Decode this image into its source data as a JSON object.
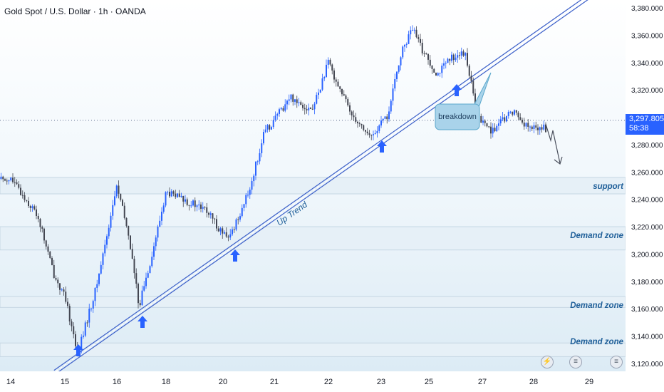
{
  "header": {
    "title": "Gold Spot / U.S. Dollar · 1h · OANDA"
  },
  "price_tag": {
    "price": "3,297.805",
    "countdown": "58:38"
  },
  "colors": {
    "up_candle": "#2962ff",
    "down_candle": "#434651",
    "trendline": "#3b5fc9",
    "arrow": "#2962ff",
    "zone_fill": "#e6f0f7",
    "callout_fill": "#a9d3ea",
    "callout_border": "#5aa7cc",
    "label_text": "#1f5f99"
  },
  "icons": [
    "lightning-icon",
    "us-flag-icon",
    "us-flag-icon"
  ],
  "chart_data": {
    "type": "candlestick",
    "title": "Gold Spot / U.S. Dollar · 1h · OANDA",
    "xlabel": "",
    "ylabel": "",
    "x_ticks": [
      "14",
      "15",
      "16",
      "18",
      "20",
      "21",
      "22",
      "23",
      "25",
      "27",
      "28",
      "29"
    ],
    "y_ticks": [
      "3,120.000",
      "3,140.000",
      "3,160.000",
      "3,180.000",
      "3,200.000",
      "3,220.000",
      "3,240.000",
      "3,260.000",
      "3,280.000",
      "3,300.000",
      "3,320.000",
      "3,340.000",
      "3,360.000",
      "3,380.000"
    ],
    "ylim": [
      3115,
      3388
    ],
    "grid": false,
    "current_price": 3297.805,
    "trend_series": [
      {
        "date": "14",
        "price": 3255
      },
      {
        "date": "14.5",
        "price": 3228
      },
      {
        "date": "14.8",
        "price": 3185
      },
      {
        "date": "15",
        "price": 3168
      },
      {
        "date": "15.25",
        "price": 3128
      },
      {
        "date": "15.6",
        "price": 3175
      },
      {
        "date": "16",
        "price": 3250
      },
      {
        "date": "16.5",
        "price": 3212
      },
      {
        "date": "16.9",
        "price": 3162
      },
      {
        "date": "17.5",
        "price": 3205
      },
      {
        "date": "18",
        "price": 3245
      },
      {
        "date": "18.6",
        "price": 3240
      },
      {
        "date": "19.4",
        "price": 3232
      },
      {
        "date": "20.1",
        "price": 3210
      },
      {
        "date": "20.5",
        "price": 3245
      },
      {
        "date": "20.8",
        "price": 3288
      },
      {
        "date": "21.3",
        "price": 3315
      },
      {
        "date": "21.7",
        "price": 3305
      },
      {
        "date": "22",
        "price": 3340
      },
      {
        "date": "22.4",
        "price": 3305
      },
      {
        "date": "22.8",
        "price": 3285
      },
      {
        "date": "23.3",
        "price": 3302
      },
      {
        "date": "23.8",
        "price": 3345
      },
      {
        "date": "24.3",
        "price": 3365
      },
      {
        "date": "24.7",
        "price": 3350
      },
      {
        "date": "25.3",
        "price": 3332
      },
      {
        "date": "26",
        "price": 3346
      },
      {
        "date": "26.4",
        "price": 3345
      },
      {
        "date": "26.8",
        "price": 3300
      },
      {
        "date": "27.2",
        "price": 3290
      },
      {
        "date": "27.6",
        "price": 3305
      },
      {
        "date": "27.9",
        "price": 3292
      }
    ],
    "zones": [
      {
        "label": "support",
        "low": 3244,
        "high": 3256
      },
      {
        "label": "Demand zone",
        "low": 3203,
        "high": 3220
      },
      {
        "label": "Demand zone",
        "low": 3161,
        "high": 3169
      },
      {
        "label": "Demand zone",
        "low": 3125,
        "high": 3135
      }
    ],
    "trendline": {
      "label": "Up Trend",
      "from": {
        "date": "14.8",
        "price": 3115
      },
      "to": {
        "date": "29",
        "price": 3390
      }
    },
    "annotations": [
      {
        "text": "breakdown"
      }
    ]
  }
}
